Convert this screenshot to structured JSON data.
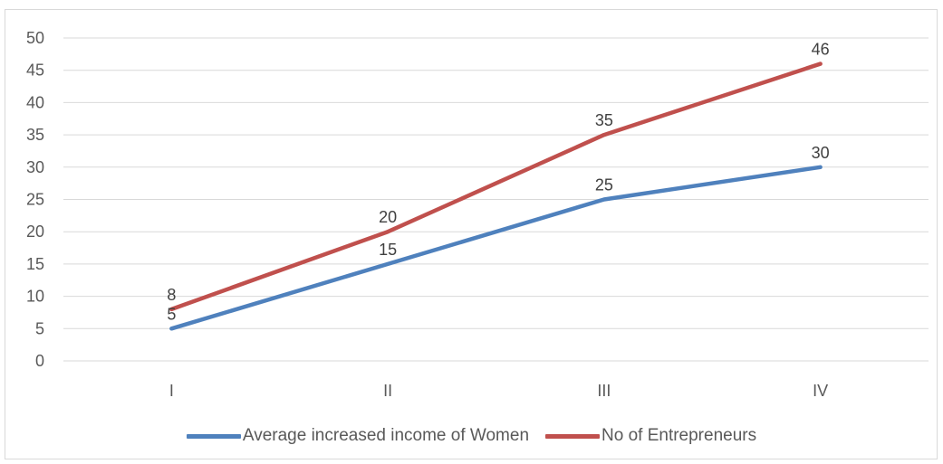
{
  "chart_data": {
    "type": "line",
    "title": "",
    "xlabel": "",
    "ylabel": "",
    "categories": [
      "I",
      "II",
      "III",
      "IV"
    ],
    "ylim": [
      0,
      50
    ],
    "yticks": [
      0,
      5,
      10,
      15,
      20,
      25,
      30,
      35,
      40,
      45,
      50
    ],
    "grid": true,
    "legend_position": "bottom",
    "series": [
      {
        "name": "Average increased income of Women",
        "values": [
          5,
          15,
          25,
          30
        ],
        "color": "#4f81bd"
      },
      {
        "name": "No of Entrepreneurs",
        "values": [
          8,
          20,
          35,
          46
        ],
        "color": "#c0504d"
      }
    ]
  }
}
